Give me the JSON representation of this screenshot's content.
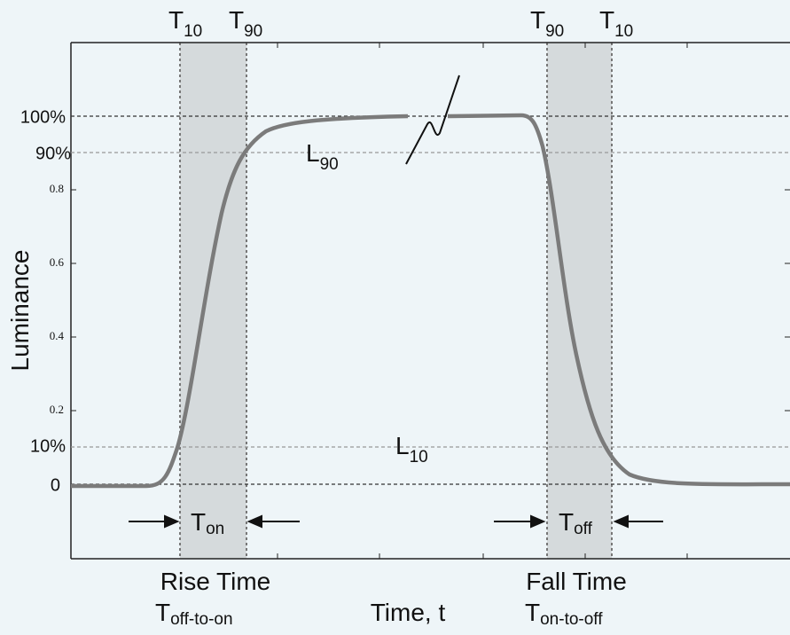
{
  "y_axis_label": "Luminance",
  "y_tick_labels": [
    "0.2",
    "0.4",
    "0.6",
    "0.8"
  ],
  "level_labels": [
    "100%",
    "90%",
    "10%",
    "0"
  ],
  "markers_top": [
    {
      "main": "T",
      "sub": "10"
    },
    {
      "main": "T",
      "sub": "90"
    },
    {
      "main": "T",
      "sub": "90"
    },
    {
      "main": "T",
      "sub": "10"
    }
  ],
  "level_markers": [
    {
      "main": "L",
      "sub": "90"
    },
    {
      "main": "L",
      "sub": "10"
    }
  ],
  "durations": [
    {
      "main": "T",
      "sub": "on"
    },
    {
      "main": "T",
      "sub": "off"
    }
  ],
  "rise": {
    "title": "Rise Time",
    "main": "T",
    "sub": "off-to-on"
  },
  "fall": {
    "title": "Fall Time",
    "main": "T",
    "sub": "on-to-off"
  },
  "x_axis_label": "Time, t"
}
